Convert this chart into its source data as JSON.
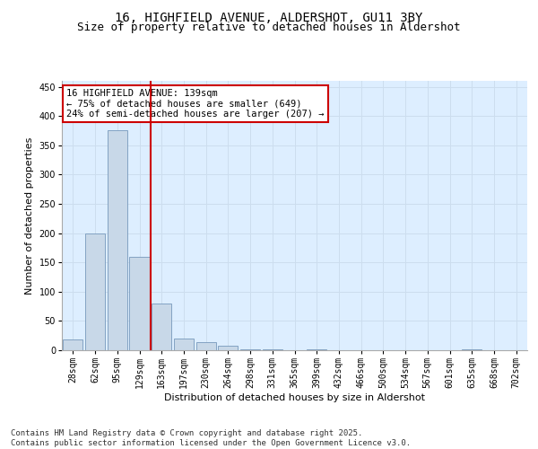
{
  "title_line1": "16, HIGHFIELD AVENUE, ALDERSHOT, GU11 3BY",
  "title_line2": "Size of property relative to detached houses in Aldershot",
  "xlabel": "Distribution of detached houses by size in Aldershot",
  "ylabel": "Number of detached properties",
  "categories": [
    "28sqm",
    "62sqm",
    "95sqm",
    "129sqm",
    "163sqm",
    "197sqm",
    "230sqm",
    "264sqm",
    "298sqm",
    "331sqm",
    "365sqm",
    "399sqm",
    "432sqm",
    "466sqm",
    "500sqm",
    "534sqm",
    "567sqm",
    "601sqm",
    "635sqm",
    "668sqm",
    "702sqm"
  ],
  "values": [
    18,
    200,
    375,
    160,
    80,
    20,
    14,
    8,
    2,
    1,
    0,
    1,
    0,
    0,
    0,
    0,
    0,
    0,
    1,
    0,
    0
  ],
  "bar_color": "#c8d8e8",
  "bar_edge_color": "#7799bb",
  "vline_color": "#cc0000",
  "annotation_text": "16 HIGHFIELD AVENUE: 139sqm\n← 75% of detached houses are smaller (649)\n24% of semi-detached houses are larger (207) →",
  "annotation_box_facecolor": "#ffffff",
  "annotation_box_edgecolor": "#cc0000",
  "ylim": [
    0,
    460
  ],
  "yticks": [
    0,
    50,
    100,
    150,
    200,
    250,
    300,
    350,
    400,
    450
  ],
  "grid_color": "#ccddee",
  "background_color": "#ddeeff",
  "footer_text": "Contains HM Land Registry data © Crown copyright and database right 2025.\nContains public sector information licensed under the Open Government Licence v3.0.",
  "title_fontsize": 10,
  "subtitle_fontsize": 9,
  "axis_label_fontsize": 8,
  "tick_fontsize": 7,
  "annotation_fontsize": 7.5,
  "footer_fontsize": 6.5
}
